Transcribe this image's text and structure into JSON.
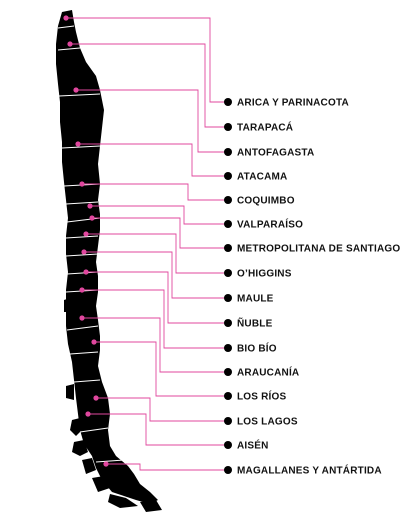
{
  "map": {
    "line_color": "#e0479e",
    "region_fill": "#000000",
    "region_border": "#ffffff",
    "regions": [
      {
        "name": "ARICA Y PARINACOTA"
      },
      {
        "name": "TARAPACÁ"
      },
      {
        "name": "ANTOFAGASTA"
      },
      {
        "name": "ATACAMA"
      },
      {
        "name": "COQUIMBO"
      },
      {
        "name": "VALPARAÍSO"
      },
      {
        "name": "METROPOLITANA DE SANTIAGO"
      },
      {
        "name": "O’HIGGINS"
      },
      {
        "name": "MAULE"
      },
      {
        "name": "ÑUBLE"
      },
      {
        "name": "BIO BÍO"
      },
      {
        "name": "ARAUCANÍA"
      },
      {
        "name": "LOS RÍOS"
      },
      {
        "name": "LOS LAGOS"
      },
      {
        "name": "AISÉN"
      },
      {
        "name": "MAGALLANES Y ANTÁRTIDA"
      }
    ]
  }
}
